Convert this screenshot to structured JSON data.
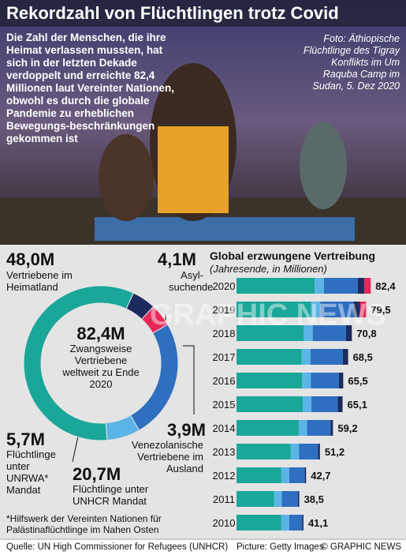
{
  "title": "Rekordzahl von Flüchtlingen trotz Covid",
  "intro": "Die Zahl der Menschen, die ihre Heimat verlassen mussten, hat sich in der letzten Dekade verdoppelt und erreichte 82,4 Millionen laut Vereinter Nationen, obwohl es durch die globale Pandemie zu erheblichen Bewegungs-beschränkungen gekommen ist",
  "photo_caption": "Foto: Äthiopische Flüchtlinge des Tigray Konflikts im Um Raquba Camp im Sudan, 5. Dez 2020",
  "watermark": "GRAPHIC NEWS",
  "footnote": "*Hilfswerk der Vereinten Nationen für Palästinaflüchtlinge im Nahen Osten",
  "source": "Quelle: UN High Commissioner for Refugees (UNHCR)",
  "picture_credit": "Picture: Getty Images",
  "copyright": "© GRAPHIC NEWS",
  "chart_data": [
    {
      "type": "pie",
      "center_value": "82,4M",
      "center_label": "Zwangsweise Vertriebene weltweit zu Ende 2020",
      "categories": [
        "Vertriebene im Heimatland",
        "Asyl-suchende",
        "Venezolanische Vertriebene im Ausland",
        "Flüchtlinge unter UNHCR Mandat",
        "Flüchtlinge unter UNRWA* Mandat"
      ],
      "values": [
        48.0,
        4.1,
        3.9,
        20.7,
        5.7
      ],
      "value_labels": [
        "48,0M",
        "4,1M",
        "3,9M",
        "20,7M",
        "5,7M"
      ],
      "colors": [
        "#1aa79a",
        "#1d2a5e",
        "#e8285a",
        "#2f6fc0",
        "#5bb4e6"
      ]
    },
    {
      "type": "bar",
      "orientation": "horizontal",
      "stacked": true,
      "title": "Global erzwungene Vertreibung",
      "subtitle": "(Jahresende, in Millionen)",
      "categories": [
        "2020",
        "2019",
        "2018",
        "2017",
        "2016",
        "2015",
        "2014",
        "2013",
        "2012",
        "2011",
        "2010"
      ],
      "series": [
        {
          "color": "#1aa79a",
          "values": [
            48.0,
            45.8,
            41.3,
            40.0,
            40.3,
            40.8,
            38.2,
            33.3,
            27.5,
            23.0,
            27.5
          ]
        },
        {
          "color": "#5bb4e6",
          "values": [
            5.7,
            5.6,
            5.5,
            5.4,
            5.3,
            5.2,
            5.1,
            5.0,
            4.9,
            4.8,
            4.8
          ]
        },
        {
          "color": "#2f6fc0",
          "values": [
            20.7,
            20.4,
            20.4,
            19.9,
            17.2,
            16.1,
            14.4,
            11.7,
            9.5,
            9.9,
            8.0
          ]
        },
        {
          "color": "#1d2a5e",
          "values": [
            4.1,
            4.1,
            3.6,
            3.2,
            2.7,
            3.0,
            1.5,
            1.2,
            0.8,
            0.8,
            0.8
          ]
        },
        {
          "color": "#e8285a",
          "values": [
            3.9,
            3.6,
            0,
            0,
            0,
            0,
            0,
            0,
            0,
            0,
            0
          ]
        }
      ],
      "total_labels": [
        "82,4",
        "79,5",
        "70,8",
        "68,5",
        "65,5",
        "65,1",
        "59,2",
        "51,2",
        "42,7",
        "38,5",
        "41,1"
      ],
      "xlim": [
        0,
        90
      ]
    }
  ]
}
